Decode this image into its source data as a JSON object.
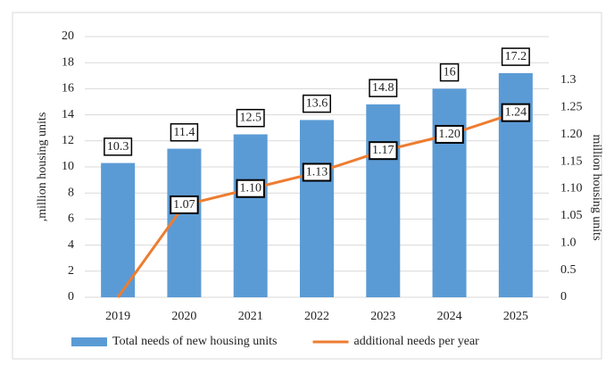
{
  "chart_data": {
    "type": "combo",
    "categories": [
      "2019",
      "2020",
      "2021",
      "2022",
      "2023",
      "2024",
      "2025"
    ],
    "series": [
      {
        "name": "Total needs of new housing units",
        "type": "bar",
        "color": "#5b9bd5",
        "values": [
          10.3,
          11.4,
          12.5,
          13.6,
          14.8,
          16,
          17.2
        ]
      },
      {
        "name": "additional needs per year",
        "type": "line",
        "axis": "y2",
        "color": "#ed7d31",
        "values": [
          0,
          1.07,
          1.1,
          1.13,
          1.17,
          1.2,
          1.24
        ],
        "value_labels": [
          null,
          "1.07",
          "1.10",
          "1.13",
          "1.17",
          "1.20",
          "1.24"
        ]
      }
    ],
    "ylabel": ",million  housing units",
    "y2label": "million housing units",
    "ylim": [
      0,
      20
    ],
    "yticks": [
      0,
      2,
      4,
      6,
      8,
      10,
      12,
      14,
      16,
      18,
      20
    ],
    "y2lim": [
      0,
      1.3
    ],
    "y2ticks": [
      0,
      0.5,
      {
        "value": 1,
        "label": "1.0"
      },
      1.05,
      {
        "value": 1.1,
        "label": "1.10"
      },
      1.15,
      {
        "value": 1.2,
        "label": "1.20"
      },
      1.25,
      1.3
    ],
    "grid": true,
    "legend": "bottom"
  }
}
